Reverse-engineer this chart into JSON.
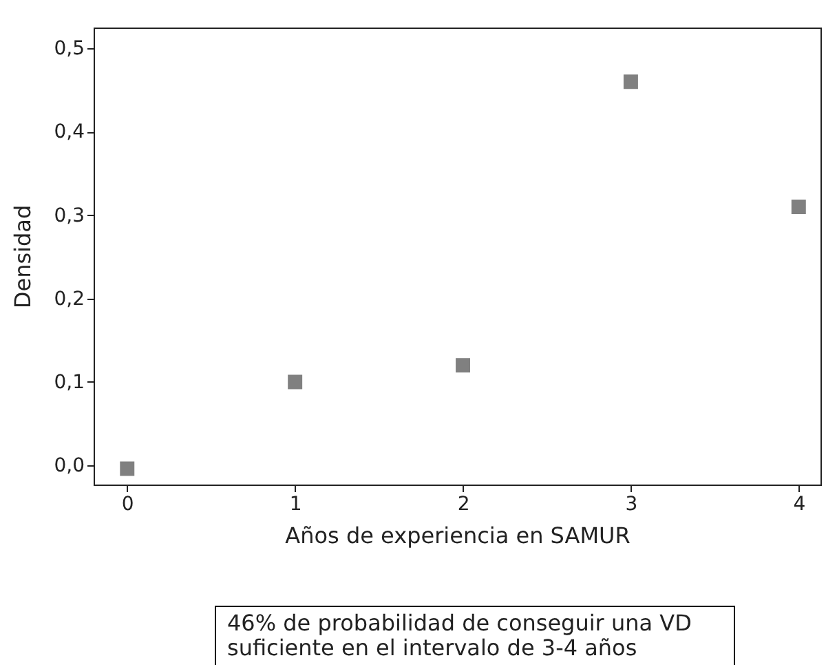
{
  "chart_data": {
    "type": "scatter",
    "xlabel": "Años de experiencia en SAMUR",
    "ylabel": "Densidad",
    "x": [
      0,
      1,
      2,
      3,
      4
    ],
    "series": [
      {
        "color": "#808080",
        "values": [
          -0.004,
          0.1,
          0.12,
          0.46,
          0.31
        ]
      }
    ],
    "xlim": [
      -0.2,
      4.13
    ],
    "ylim": [
      -0.023,
      0.525
    ],
    "xticks": [
      0,
      1,
      2,
      3,
      4
    ],
    "yticks": [
      {
        "value": 0,
        "label": "0,0"
      },
      {
        "value": 0.1,
        "label": "0,1"
      },
      {
        "value": 0.2,
        "label": "0,2"
      },
      {
        "value": 0.3,
        "label": "0,3"
      },
      {
        "value": 0.4,
        "label": "0,4"
      },
      {
        "value": 0.5,
        "label": "0,5"
      }
    ],
    "grid": false,
    "marker": "square",
    "annotations": [
      "46% de probabilidad de conseguir una VD suficiente en el intervalo de 3-4 años"
    ]
  }
}
